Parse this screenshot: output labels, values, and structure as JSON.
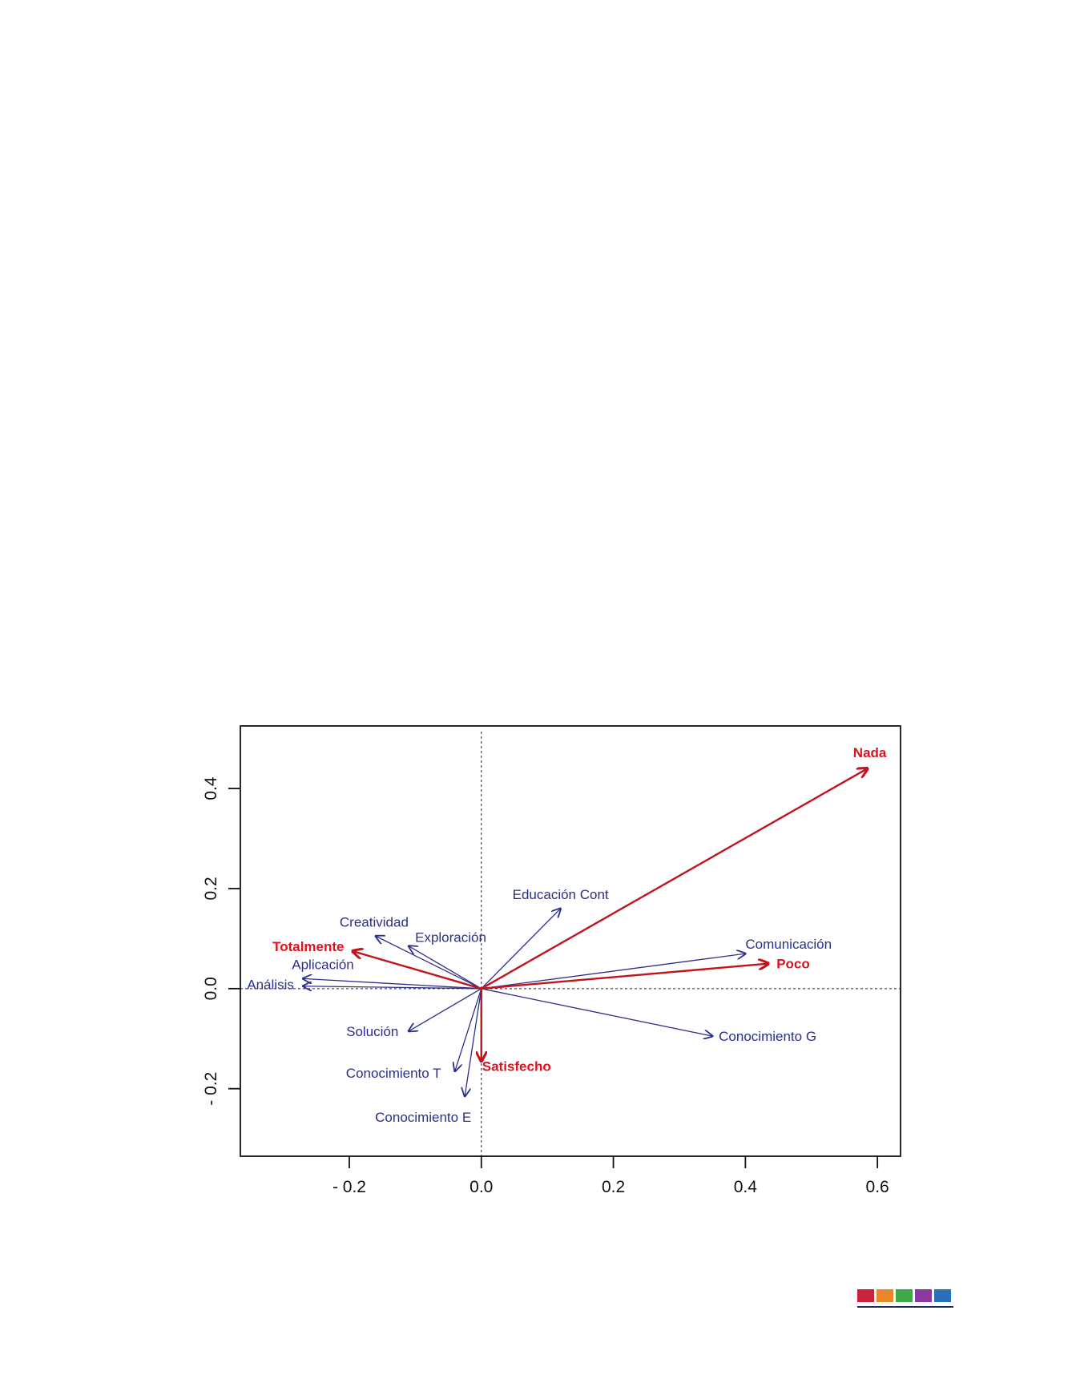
{
  "chart_data": {
    "type": "biplot",
    "xlim": [
      -0.365,
      0.635
    ],
    "ylim": [
      -0.335,
      0.525
    ],
    "x_ticks": [
      {
        "value": -0.2,
        "label": "- 0.2"
      },
      {
        "value": 0.0,
        "label": "0.0"
      },
      {
        "value": 0.2,
        "label": "0.2"
      },
      {
        "value": 0.4,
        "label": "0.4"
      },
      {
        "value": 0.6,
        "label": "0.6"
      }
    ],
    "y_ticks": [
      {
        "value": -0.2,
        "label": "- 0.2"
      },
      {
        "value": 0.0,
        "label": "0.0"
      },
      {
        "value": 0.2,
        "label": "0.2"
      },
      {
        "value": 0.4,
        "label": "0.4"
      }
    ],
    "reference_lines": {
      "x": 0.0,
      "y": 0.0,
      "style": "dashed"
    },
    "variables": [
      {
        "name": "Educación Cont",
        "x": 0.12,
        "y": 0.16
      },
      {
        "name": "Comunicación",
        "x": 0.4,
        "y": 0.07
      },
      {
        "name": "Conocimiento G",
        "x": 0.35,
        "y": -0.095
      },
      {
        "name": "Creatividad",
        "x": -0.16,
        "y": 0.105
      },
      {
        "name": "Exploración",
        "x": -0.11,
        "y": 0.085
      },
      {
        "name": "Aplicación",
        "x": -0.27,
        "y": 0.02
      },
      {
        "name": "Análisis",
        "x": -0.27,
        "y": 0.005
      },
      {
        "name": "Solución",
        "x": -0.11,
        "y": -0.085
      },
      {
        "name": "Conocimiento T",
        "x": -0.04,
        "y": -0.165
      },
      {
        "name": "Conocimiento E",
        "x": -0.025,
        "y": -0.215
      }
    ],
    "categories": [
      {
        "name": "Nada",
        "x": 0.585,
        "y": 0.44
      },
      {
        "name": "Poco",
        "x": 0.435,
        "y": 0.05
      },
      {
        "name": "Totalmente",
        "x": -0.195,
        "y": 0.075
      },
      {
        "name": "Satisfecho",
        "x": 0.0,
        "y": -0.145
      }
    ],
    "colors": {
      "variables": "#2b2f8a",
      "categories": "#c0141e",
      "category_labels": "#e0101e"
    }
  },
  "footer": {
    "swatches": [
      "#c8223c",
      "#e8862a",
      "#3ea84a",
      "#8a3a9c",
      "#2a70b8"
    ],
    "rule_color": "#1a2a55"
  }
}
